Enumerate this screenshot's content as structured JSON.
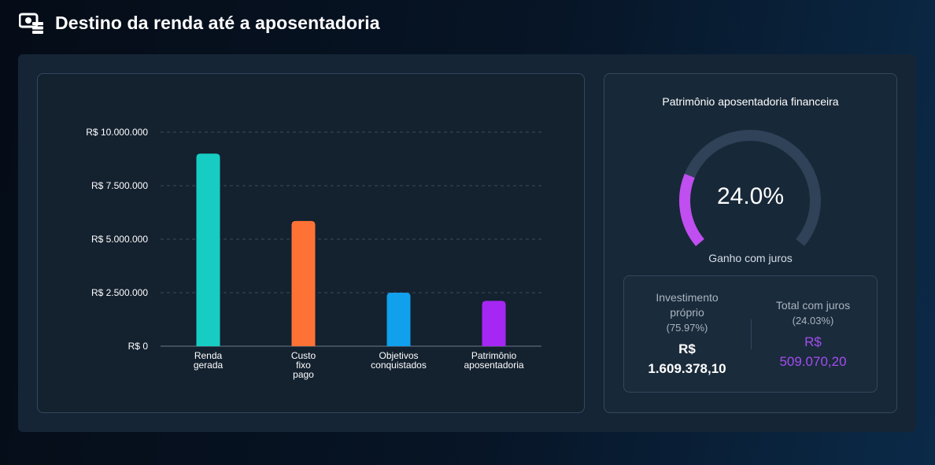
{
  "header": {
    "title": "Destino da renda até a aposentadoria",
    "icon": "money-icon"
  },
  "chart": {
    "chart_data": {
      "type": "bar",
      "title": "",
      "xlabel": "",
      "ylabel": "",
      "ylim": [
        0,
        10000000
      ],
      "yticks": [
        "R$ 0",
        "R$ 2.500.000",
        "R$ 5.000.000",
        "R$ 7.500.000",
        "R$ 10.000.000"
      ],
      "grid": true,
      "categories": [
        [
          "Renda",
          "gerada"
        ],
        [
          "Custo",
          "fixo",
          "pago"
        ],
        [
          "Objetivos",
          "conquistados"
        ],
        [
          "Patrimônio",
          "aposentadoria"
        ]
      ],
      "values": [
        9000000,
        5850000,
        2500000,
        2120000
      ],
      "colors": [
        "#17cdc3",
        "#ff7236",
        "#10a0ec",
        "#a626f4"
      ]
    }
  },
  "gauge": {
    "title": "Patrimônio aposentadoria financeira",
    "value_text": "24.0%",
    "percent": 24.0,
    "label": "Ganho com juros",
    "fill_color": "#c04ef0",
    "track_color": "#2f4257"
  },
  "stats": {
    "own": {
      "label": "Investimento próprio",
      "pct": "(75.97%)",
      "currency": "R$",
      "amount": "1.609.378,10"
    },
    "interest": {
      "label": "Total com juros",
      "pct": "(24.03%)",
      "currency": "R$",
      "amount": "509.070,20"
    }
  }
}
